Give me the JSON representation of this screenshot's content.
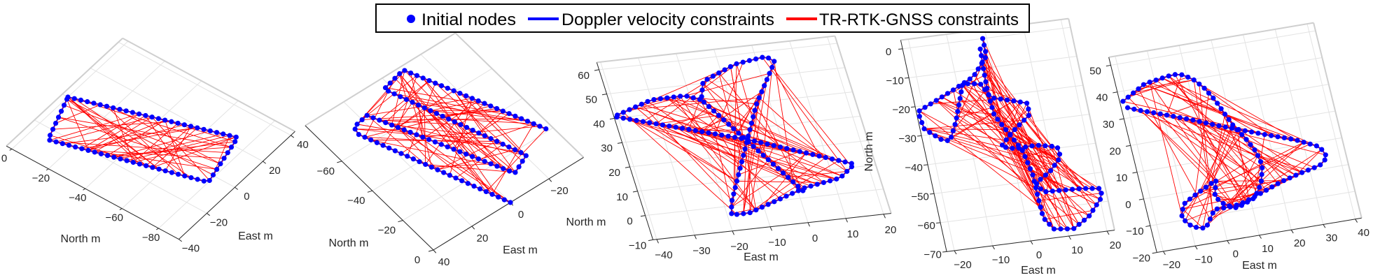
{
  "legend": {
    "items": [
      {
        "label": "Initial nodes",
        "marker": "dot",
        "color": "#0000ff"
      },
      {
        "label": "Doppler velocity constraints",
        "marker": "line",
        "color": "#0000ff"
      },
      {
        "label": "TR-RTK-GNSS constraints",
        "marker": "line",
        "color": "#ff0000"
      }
    ]
  },
  "colors": {
    "nodes": "#0000ff",
    "doppler": "#0000ff",
    "gnss": "#ff0000",
    "grid": "#e3e3e3",
    "axis": "#262626"
  },
  "chart_data": [
    {
      "type": "line",
      "xlabel": "East m",
      "ylabel": "North m",
      "x_ticks": [
        -40,
        -20,
        0,
        20,
        40
      ],
      "y_ticks": [
        0,
        -20,
        -40,
        -60,
        -80
      ],
      "grid": true,
      "trajectory": [
        [
          0,
          0
        ],
        [
          25,
          -73.5
        ],
        [
          -4.5,
          -80
        ],
        [
          -26,
          -9
        ],
        [
          0,
          0
        ]
      ]
    },
    {
      "type": "line",
      "xlabel": "East m",
      "ylabel": "North m",
      "x_ticks": [
        40,
        20,
        0,
        -20
      ],
      "y_ticks": [
        -60,
        -40,
        -20,
        0
      ],
      "grid": true,
      "trajectory": [
        [
          0,
          0
        ],
        [
          26,
          -67
        ],
        [
          25,
          -71
        ],
        [
          17,
          -72.5
        ],
        [
          -11,
          -11
        ],
        [
          -20.6,
          -15.5
        ],
        [
          3,
          -79
        ],
        [
          -9.4,
          -82
        ],
        [
          -36,
          -20
        ]
      ]
    },
    {
      "type": "line",
      "xlabel": "East m",
      "ylabel": "North m",
      "x_ticks": [
        -40,
        -30,
        -20,
        -10,
        0,
        10,
        20
      ],
      "y_ticks": [
        60,
        50,
        40,
        30,
        20,
        10,
        0,
        -10
      ],
      "grid": true,
      "trajectory": [
        [
          1.3,
          2.9
        ],
        [
          -17.3,
          43.5
        ],
        [
          -15.4,
          50.7
        ],
        [
          -5.8,
          56.2
        ],
        [
          2.7,
          57.9
        ],
        [
          4.5,
          55.5
        ],
        [
          -3.7,
          39.1
        ],
        [
          -11.8,
          17.6
        ],
        [
          -17.9,
          1.4
        ],
        [
          -18.9,
          -3.6
        ],
        [
          -14.2,
          -3.6
        ],
        [
          2,
          4
        ],
        [
          11.8,
          6.3
        ],
        [
          16.6,
          11.2
        ],
        [
          -8.5,
          25.6
        ],
        [
          -41,
          40.7
        ],
        [
          -30.1,
          45.7
        ],
        [
          -21.2,
          45.9
        ],
        [
          -17.3,
          43.5
        ]
      ]
    },
    {
      "type": "line",
      "xlabel": "East m",
      "ylabel": "North m",
      "x_ticks": [
        -20,
        -10,
        0,
        10,
        20
      ],
      "y_ticks": [
        0,
        -10,
        -20,
        -30,
        -40,
        -50,
        -60,
        -70
      ],
      "grid": true,
      "trajectory": [
        [
          -1,
          0
        ],
        [
          -1,
          -6
        ],
        [
          -5.5,
          -12.4
        ],
        [
          -11.7,
          -16.2
        ],
        [
          -21.6,
          -21.8
        ],
        [
          -20.9,
          -27.9
        ],
        [
          -17.1,
          -32.2
        ],
        [
          -15,
          -33
        ],
        [
          -12.5,
          -26.9
        ],
        [
          -8.6,
          -14.3
        ],
        [
          -4.1,
          -15.1
        ],
        [
          -2.2,
          -20.2
        ],
        [
          3.8,
          -22.4
        ],
        [
          6.9,
          -23.7
        ],
        [
          6.6,
          -27.7
        ],
        [
          1.2,
          -32.8
        ],
        [
          -2.3,
          -37.1
        ],
        [
          1.2,
          -38.4
        ],
        [
          6.7,
          -38.1
        ],
        [
          12,
          -39.5
        ],
        [
          12.3,
          -43.1
        ],
        [
          8.9,
          -47.4
        ],
        [
          4.6,
          -50.8
        ],
        [
          5.9,
          -54.1
        ],
        [
          15.9,
          -54.6
        ],
        [
          20.8,
          -55.4
        ],
        [
          20.6,
          -58.3
        ],
        [
          16.2,
          -64.3
        ],
        [
          11.6,
          -67.8
        ],
        [
          6.6,
          -67
        ],
        [
          4.5,
          -62.8
        ],
        [
          4.3,
          -55.1
        ],
        [
          4.2,
          -47.8
        ],
        [
          2.9,
          -39.2
        ],
        [
          0.3,
          -32.7
        ],
        [
          -2.3,
          -26.2
        ],
        [
          -2.7,
          -17.7
        ],
        [
          -2.5,
          -10.5
        ],
        [
          -2.2,
          -3.4
        ]
      ]
    },
    {
      "type": "line",
      "xlabel": "East m",
      "ylabel": "",
      "x_ticks": [
        -20,
        -10,
        0,
        10,
        20,
        30,
        40
      ],
      "y_ticks": [
        50,
        40,
        30,
        20,
        10,
        0,
        -10,
        -20
      ],
      "grid": true,
      "trajectory": [
        [
          -21,
          36.3
        ],
        [
          -13.2,
          41.3
        ],
        [
          -3.9,
          42.9
        ],
        [
          -1.4,
          42.3
        ],
        [
          1.5,
          40.2
        ],
        [
          4.2,
          36.5
        ],
        [
          6.7,
          31.3
        ],
        [
          8.6,
          25.7
        ],
        [
          10.5,
          20.4
        ],
        [
          12.9,
          15.9
        ],
        [
          15.2,
          10.3
        ],
        [
          16.1,
          4.9
        ],
        [
          14.4,
          -1.5
        ],
        [
          11.4,
          -6.3
        ],
        [
          5.4,
          -8.9
        ],
        [
          1.9,
          -6.9
        ],
        [
          -0.5,
          -3.5
        ],
        [
          1.1,
          2.4
        ],
        [
          -7.2,
          -2.2
        ],
        [
          -10.5,
          -4.4
        ],
        [
          -12,
          -9.1
        ],
        [
          -9.4,
          -13
        ],
        [
          -5.5,
          -14.3
        ],
        [
          -1.5,
          -8
        ],
        [
          4.1,
          -8.1
        ],
        [
          7.7,
          -7.3
        ],
        [
          13.2,
          -5.2
        ],
        [
          20.6,
          -2.1
        ],
        [
          27,
          -0.2
        ],
        [
          33.3,
          1.4
        ],
        [
          36.2,
          3.9
        ],
        [
          34.7,
          8.1
        ],
        [
          27.7,
          12.2
        ],
        [
          19.4,
          15.7
        ],
        [
          11.2,
          19.4
        ],
        [
          5.8,
          21.8
        ],
        [
          -1.5,
          25.4
        ],
        [
          -10.6,
          29.5
        ],
        [
          -17,
          32.2
        ],
        [
          -21,
          34.2
        ]
      ]
    }
  ]
}
